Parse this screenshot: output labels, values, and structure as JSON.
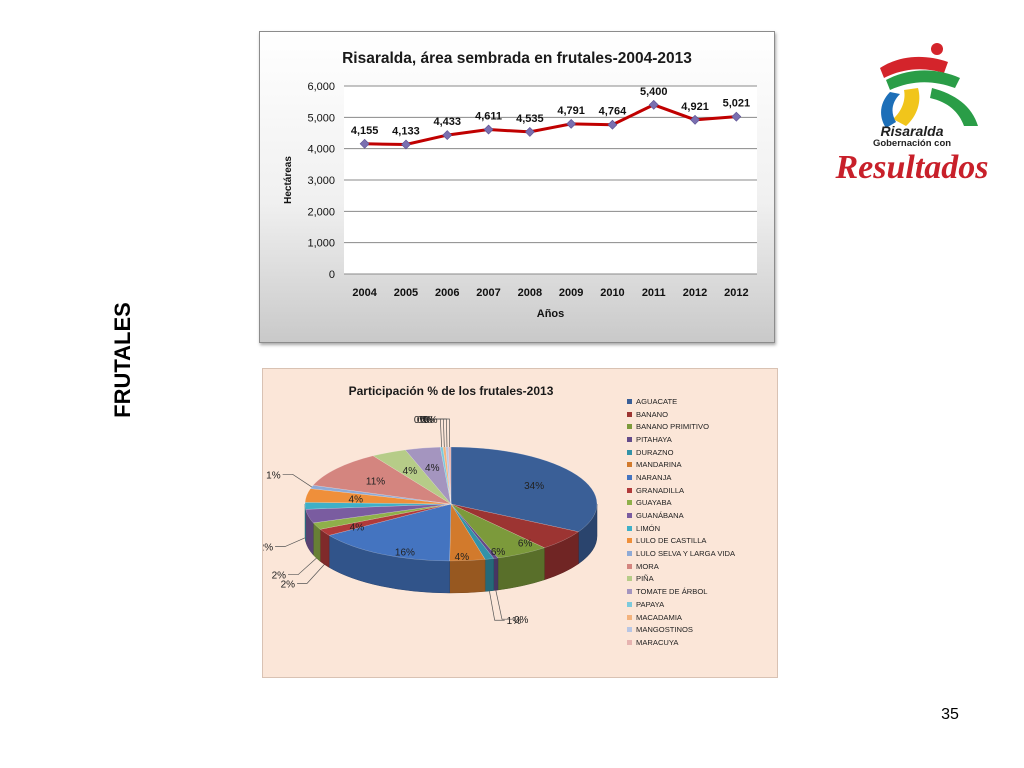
{
  "side_title": "FRUTALES",
  "page_number": "35",
  "logo": {
    "line1": "Risaralda",
    "line2": "Gobernación con",
    "line3": "Resultados"
  },
  "chart_data": [
    {
      "type": "line",
      "title": "Risaralda, área sembrada en frutales-2004-2013",
      "xlabel": "Años",
      "ylabel": "Hectáreas",
      "categories": [
        "2004",
        "2005",
        "2006",
        "2007",
        "2008",
        "2009",
        "2010",
        "2011",
        "2012",
        "2012"
      ],
      "values": [
        4155,
        4133,
        4433,
        4611,
        4535,
        4791,
        4764,
        5400,
        4921,
        5021
      ],
      "data_labels": [
        "4,155",
        "4,133",
        "4,433",
        "4,611",
        "4,535",
        "4,791",
        "4,764",
        "5,400",
        "4,921",
        "5,021"
      ],
      "ylim": [
        0,
        6000
      ],
      "yticks": [
        "0",
        "1,000",
        "2,000",
        "3,000",
        "4,000",
        "5,000",
        "6,000"
      ],
      "grid": true,
      "line_color": "#c00000",
      "marker_color": "#7a6fb0"
    },
    {
      "type": "pie",
      "title": "Participación % de los frutales-2013",
      "legend_position": "right",
      "slices": [
        {
          "label": "AGUACATE",
          "value": 34,
          "text": "34%",
          "color": "#3a5f97"
        },
        {
          "label": "BANANO",
          "value": 6,
          "text": "6%",
          "color": "#9c3432"
        },
        {
          "label": "BANANO PRIMITIVO",
          "value": 6,
          "text": "6%",
          "color": "#7c9a3b"
        },
        {
          "label": "PITAHAYA",
          "value": 0.5,
          "text": "0%",
          "color": "#634b8a"
        },
        {
          "label": "DURAZNO",
          "value": 1,
          "text": "1%",
          "color": "#3392a8"
        },
        {
          "label": "MANDARINA",
          "value": 4,
          "text": "4%",
          "color": "#d27a2c"
        },
        {
          "label": "NARANJA",
          "value": 16,
          "text": "16%",
          "color": "#4474c0"
        },
        {
          "label": "GRANADILLA",
          "value": 2,
          "text": "2%",
          "color": "#b13a3a"
        },
        {
          "label": "GUAYABA",
          "value": 2,
          "text": "2%",
          "color": "#8fb04a"
        },
        {
          "label": "GUANÁBANA",
          "value": 4,
          "text": "4%",
          "color": "#7a5ca0"
        },
        {
          "label": "LIMÓN",
          "value": 2,
          "text": "2%",
          "color": "#3fb0c8"
        },
        {
          "label": "LULO DE CASTILLA",
          "value": 4,
          "text": "4%",
          "color": "#ef8f3a"
        },
        {
          "label": "LULO SELVA Y LARGA VIDA",
          "value": 1,
          "text": "1%",
          "color": "#8eaad6"
        },
        {
          "label": "MORA",
          "value": 11,
          "text": "11%",
          "color": "#d4857f"
        },
        {
          "label": "PIÑA",
          "value": 4,
          "text": "4%",
          "color": "#b6cc88"
        },
        {
          "label": "TOMATE DE ÁRBOL",
          "value": 4,
          "text": "4%",
          "color": "#a495bf"
        },
        {
          "label": "PAPAYA",
          "value": 0.3,
          "text": "0%",
          "color": "#7ccadc"
        },
        {
          "label": "MACADAMIA",
          "value": 0.3,
          "text": "0%",
          "color": "#f3b27c"
        },
        {
          "label": "MANGOSTINOS",
          "value": 0.3,
          "text": "0%",
          "color": "#b8c6e4"
        },
        {
          "label": "MARACUYA",
          "value": 0.3,
          "text": "0%",
          "color": "#e6b3b0"
        }
      ]
    }
  ]
}
